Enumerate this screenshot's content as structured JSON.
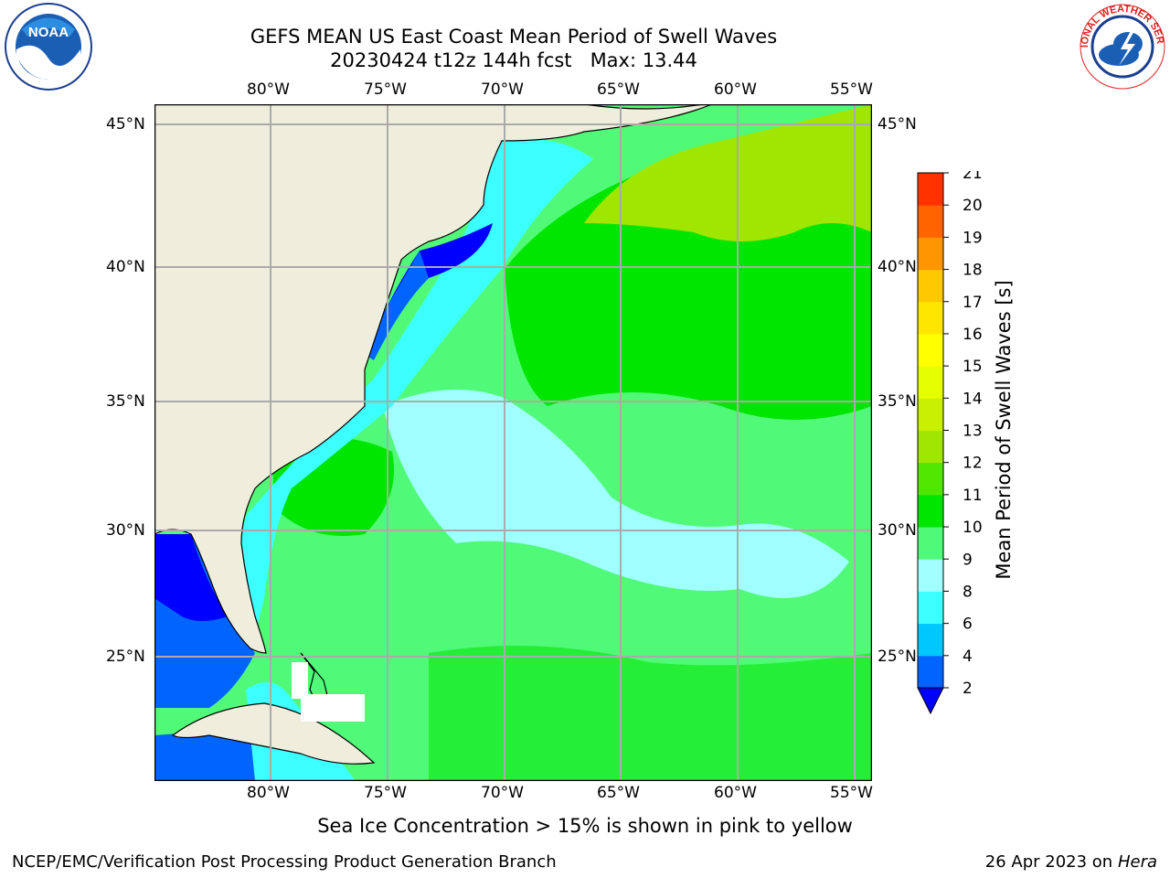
{
  "title": {
    "line1": "GEFS MEAN US East Coast Mean Period of Swell Waves",
    "line2": "20230424 t12z 144h fcst   Max: 13.44"
  },
  "map": {
    "longitude_labels": [
      "80°W",
      "75°W",
      "70°W",
      "65°W",
      "60°W",
      "55°W"
    ],
    "latitude_labels": [
      "45°N",
      "40°N",
      "35°N",
      "30°N",
      "25°N"
    ],
    "extent": {
      "lon_min": -85,
      "lon_max": -54.2,
      "lat_min": 20.2,
      "lat_max": 45.8
    },
    "land_color": "#efeddc",
    "grid_color": "#aaaaaa"
  },
  "colorbar": {
    "label": "Mean Period of Swell Waves [s]",
    "ticks": [
      "2",
      "4",
      "6",
      "8",
      "9",
      "10",
      "11",
      "12",
      "13",
      "14",
      "15",
      "16",
      "17",
      "18",
      "19",
      "20",
      "21"
    ],
    "colors": [
      "#0064ff",
      "#00c8ff",
      "#3cffff",
      "#a0ffff",
      "#50fa78",
      "#00e600",
      "#50e600",
      "#a0e600",
      "#c8f000",
      "#e6ff00",
      "#ffff00",
      "#ffe600",
      "#ffc800",
      "#ff9600",
      "#ff6400",
      "#ff3200",
      "#ff0000"
    ],
    "under_color": "#0000ff"
  },
  "note": "Sea Ice Concentration > 15% is shown in pink to yellow",
  "footer": {
    "left": "NCEP/EMC/Verification Post Processing Product Generation Branch",
    "right_date": "26 Apr 2023 on ",
    "right_machine": "Hera"
  },
  "logos": {
    "noaa": "NOAA",
    "nws": "NATIONAL WEATHER SERVICE"
  }
}
